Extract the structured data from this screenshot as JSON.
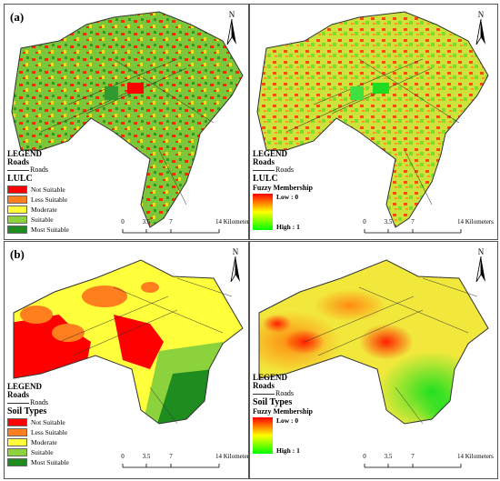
{
  "panels": [
    {
      "id": "a-left",
      "label": "(a)",
      "north": "N",
      "legend": {
        "title": "LEGEND",
        "roads_header": "Roads",
        "roads_item": "Roads",
        "layer": "LULC",
        "type": "categorical",
        "categories": [
          {
            "label": "Not Suitable",
            "color": "#ff0000"
          },
          {
            "label": "Less Suitable",
            "color": "#ff7f1e"
          },
          {
            "label": "Moderate",
            "color": "#ffff3c"
          },
          {
            "label": "Suitable",
            "color": "#8cd23c"
          },
          {
            "label": "Most Suitable",
            "color": "#1e8c1e"
          }
        ]
      },
      "scalebar": {
        "ticks": [
          "0",
          "3.5",
          "7",
          "14 Kilometers"
        ]
      }
    },
    {
      "id": "a-right",
      "label": "",
      "north": "N",
      "legend": {
        "title": "LEGEND",
        "roads_header": "Roads",
        "roads_item": "Roads",
        "layer": "LULC",
        "type": "gradient",
        "gradient_title": "Fuzzy Membership",
        "low": "Low : 0",
        "high": "High : 1"
      },
      "scalebar": {
        "ticks": [
          "0",
          "3.5",
          "7",
          "14 Kilometers"
        ]
      }
    },
    {
      "id": "b-left",
      "label": "(b)",
      "north": "N",
      "legend": {
        "title": "LEGEND",
        "roads_header": "Roads",
        "roads_item": "Roads",
        "layer": "Soil Types",
        "type": "categorical",
        "categories": [
          {
            "label": "Not Suitable",
            "color": "#ff0000"
          },
          {
            "label": "Less Suitable",
            "color": "#ff7f1e"
          },
          {
            "label": "Moderate",
            "color": "#ffff3c"
          },
          {
            "label": "Suitable",
            "color": "#8cd23c"
          },
          {
            "label": "Most Suitable",
            "color": "#1e8c1e"
          }
        ]
      },
      "scalebar": {
        "ticks": [
          "0",
          "3.5",
          "7",
          "14 Kilometers"
        ]
      }
    },
    {
      "id": "b-right",
      "label": "",
      "north": "N",
      "legend": {
        "title": "LEGEND",
        "roads_header": "Roads",
        "roads_item": "Roads",
        "layer": "Soil Types",
        "type": "gradient",
        "gradient_title": "Fuzzy Membership",
        "low": "Low : 0",
        "high": "High : 1"
      },
      "scalebar": {
        "ticks": [
          "0",
          "3.5",
          "7",
          "14 Kilometers"
        ]
      }
    }
  ]
}
